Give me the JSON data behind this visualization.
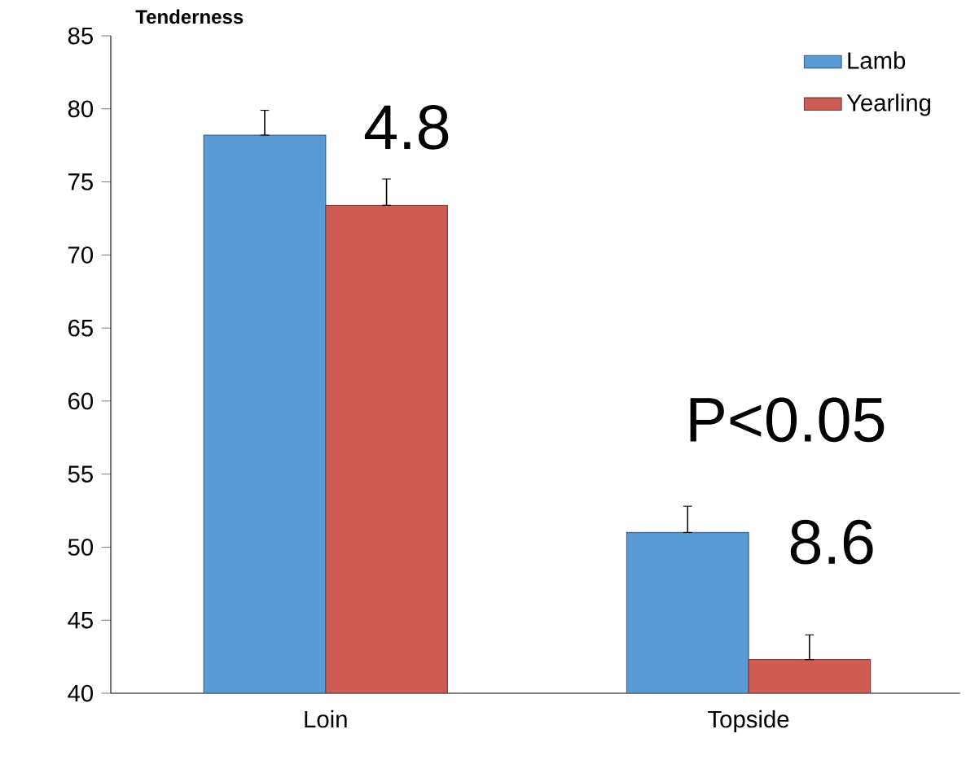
{
  "chart_data": {
    "type": "bar",
    "title": "Tenderness",
    "categories": [
      "Loin",
      "Topside"
    ],
    "series": [
      {
        "name": "Lamb",
        "color": "#5b9bd5",
        "values": [
          78.2,
          51.0
        ],
        "errors": [
          [
            78.2,
            79.9
          ],
          [
            51.0,
            52.8
          ]
        ]
      },
      {
        "name": "Yearling",
        "color": "#cd5c55",
        "values": [
          73.4,
          42.3
        ],
        "errors": [
          [
            73.4,
            75.2
          ],
          [
            42.3,
            44.0
          ]
        ]
      }
    ],
    "ylim": [
      40,
      85
    ],
    "yticks": [
      40,
      45,
      50,
      55,
      60,
      65,
      70,
      75,
      80,
      85
    ],
    "annotations": [
      "4.8",
      "P<0.05",
      "8.6"
    ],
    "legend": "top right",
    "grid": false
  }
}
